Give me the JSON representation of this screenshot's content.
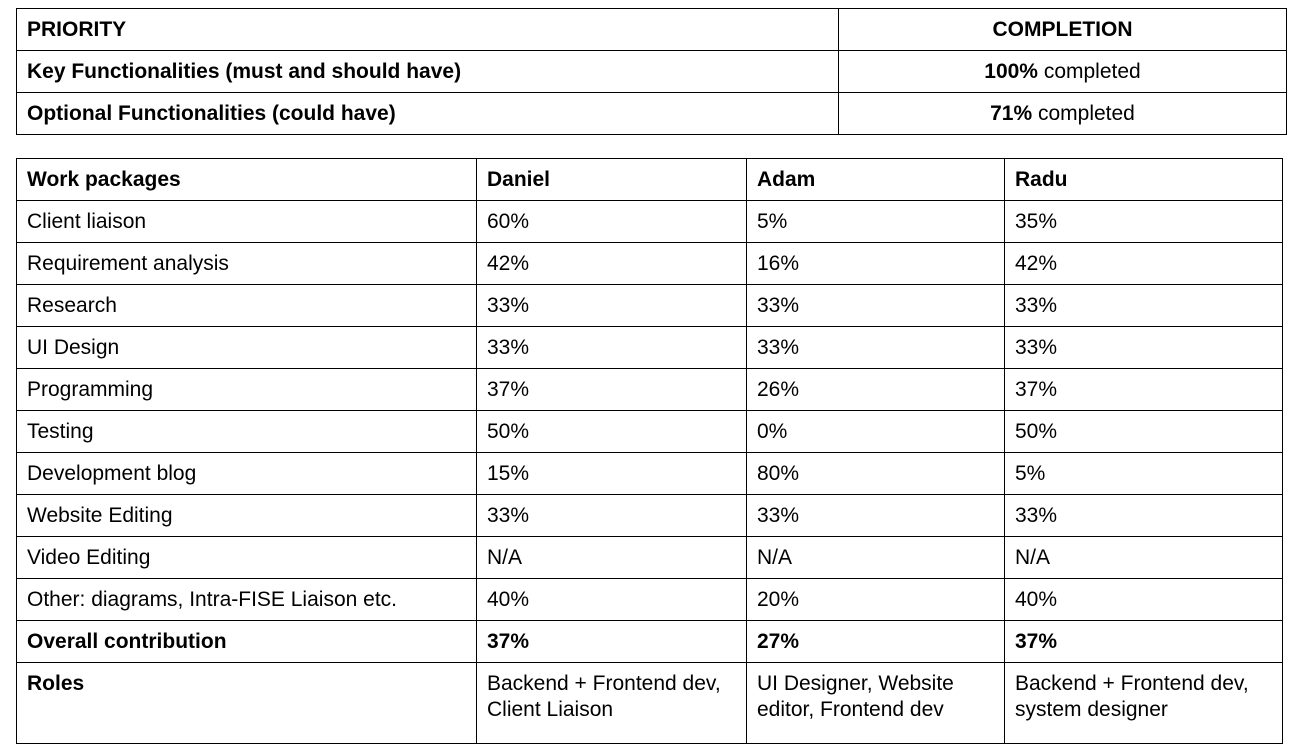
{
  "priority_table": {
    "headers": [
      "PRIORITY",
      "COMPLETION"
    ],
    "rows": [
      {
        "label": "Key Functionalities (must and should have)",
        "value": "100%",
        "suffix": " completed"
      },
      {
        "label": "Optional Functionalities (could have)",
        "value": "71%",
        "suffix": " completed"
      }
    ]
  },
  "work_table": {
    "headers": [
      "Work packages",
      "Daniel",
      "Adam",
      "Radu"
    ],
    "rows": [
      [
        "Client liaison",
        "60%",
        "5%",
        "35%"
      ],
      [
        "Requirement analysis",
        "42%",
        "16%",
        "42%"
      ],
      [
        "Research",
        "33%",
        "33%",
        "33%"
      ],
      [
        "UI Design",
        "33%",
        "33%",
        "33%"
      ],
      [
        "Programming",
        "37%",
        "26%",
        "37%"
      ],
      [
        "Testing",
        "50%",
        "0%",
        "50%"
      ],
      [
        "Development blog",
        "15%",
        "80%",
        "5%"
      ],
      [
        "Website Editing",
        "33%",
        "33%",
        "33%"
      ],
      [
        "Video Editing",
        "N/A",
        "N/A",
        "N/A"
      ],
      [
        "Other: diagrams, Intra-FISE Liaison etc.",
        "40%",
        "20%",
        "40%"
      ]
    ],
    "overall": [
      "Overall contribution",
      "37%",
      "27%",
      "37%"
    ],
    "roles": [
      "Roles",
      "Backend + Frontend dev, Client Liaison",
      "UI Designer, Website editor, Frontend dev",
      "Backend + Frontend dev, system designer"
    ]
  }
}
